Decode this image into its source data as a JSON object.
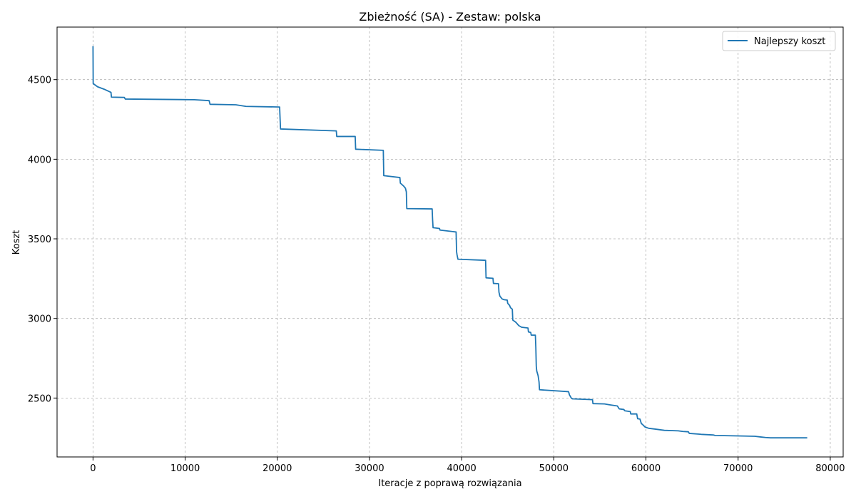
{
  "chart_data": {
    "type": "line",
    "title": "Zbieżność (SA) - Zestaw: polska",
    "xlabel": "Iteracje z poprawą rozwiązania",
    "ylabel": "Koszt",
    "xlim": [
      -3900,
      81400
    ],
    "ylim": [
      2130,
      4830
    ],
    "xticks": [
      0,
      10000,
      20000,
      30000,
      40000,
      50000,
      60000,
      70000,
      80000
    ],
    "yticks": [
      2500,
      3000,
      3500,
      4000,
      4500
    ],
    "grid": true,
    "legend_position": "top-right",
    "series": [
      {
        "name": "Najlepszy koszt",
        "color": "#1f77b4",
        "points": [
          [
            0,
            4710
          ],
          [
            20,
            4475
          ],
          [
            500,
            4455
          ],
          [
            1200,
            4440
          ],
          [
            1950,
            4420
          ],
          [
            2000,
            4390
          ],
          [
            3400,
            4388
          ],
          [
            3500,
            4378
          ],
          [
            11000,
            4374
          ],
          [
            12600,
            4368
          ],
          [
            12700,
            4345
          ],
          [
            15500,
            4342
          ],
          [
            16600,
            4332
          ],
          [
            20250,
            4328
          ],
          [
            20300,
            4255
          ],
          [
            20350,
            4190
          ],
          [
            26400,
            4178
          ],
          [
            26450,
            4143
          ],
          [
            28450,
            4143
          ],
          [
            28500,
            4063
          ],
          [
            31500,
            4056
          ],
          [
            31550,
            3897
          ],
          [
            33300,
            3885
          ],
          [
            33350,
            3850
          ],
          [
            33700,
            3832
          ],
          [
            33900,
            3818
          ],
          [
            34000,
            3795
          ],
          [
            34050,
            3690
          ],
          [
            36800,
            3688
          ],
          [
            36850,
            3620
          ],
          [
            36900,
            3570
          ],
          [
            37600,
            3565
          ],
          [
            37650,
            3555
          ],
          [
            39400,
            3543
          ],
          [
            39450,
            3420
          ],
          [
            39500,
            3400
          ],
          [
            39600,
            3372
          ],
          [
            42600,
            3365
          ],
          [
            42650,
            3255
          ],
          [
            43400,
            3252
          ],
          [
            43450,
            3220
          ],
          [
            44000,
            3218
          ],
          [
            44050,
            3165
          ],
          [
            44150,
            3140
          ],
          [
            44400,
            3122
          ],
          [
            44600,
            3118
          ],
          [
            44950,
            3115
          ],
          [
            45000,
            3095
          ],
          [
            45200,
            3082
          ],
          [
            45300,
            3068
          ],
          [
            45500,
            3058
          ],
          [
            45550,
            2990
          ],
          [
            45900,
            2975
          ],
          [
            46200,
            2955
          ],
          [
            46500,
            2945
          ],
          [
            47200,
            2940
          ],
          [
            47250,
            2915
          ],
          [
            47500,
            2912
          ],
          [
            47550,
            2895
          ],
          [
            48000,
            2895
          ],
          [
            48050,
            2820
          ],
          [
            48100,
            2700
          ],
          [
            48150,
            2670
          ],
          [
            48300,
            2640
          ],
          [
            48400,
            2600
          ],
          [
            48450,
            2552
          ],
          [
            51600,
            2540
          ],
          [
            51700,
            2520
          ],
          [
            51900,
            2500
          ],
          [
            52000,
            2495
          ],
          [
            54200,
            2490
          ],
          [
            54250,
            2465
          ],
          [
            55500,
            2463
          ],
          [
            56000,
            2458
          ],
          [
            56900,
            2450
          ],
          [
            57100,
            2432
          ],
          [
            57600,
            2428
          ],
          [
            57700,
            2420
          ],
          [
            58300,
            2415
          ],
          [
            58350,
            2400
          ],
          [
            59000,
            2400
          ],
          [
            59100,
            2370
          ],
          [
            59350,
            2368
          ],
          [
            59500,
            2340
          ],
          [
            59700,
            2330
          ],
          [
            59900,
            2318
          ],
          [
            60300,
            2310
          ],
          [
            61000,
            2305
          ],
          [
            62000,
            2297
          ],
          [
            63500,
            2294
          ],
          [
            64000,
            2290
          ],
          [
            64600,
            2288
          ],
          [
            64700,
            2278
          ],
          [
            66000,
            2272
          ],
          [
            67300,
            2268
          ],
          [
            67500,
            2265
          ],
          [
            70000,
            2262
          ],
          [
            71800,
            2260
          ],
          [
            72500,
            2255
          ],
          [
            73000,
            2252
          ],
          [
            73500,
            2250
          ],
          [
            77500,
            2250
          ]
        ]
      }
    ]
  }
}
